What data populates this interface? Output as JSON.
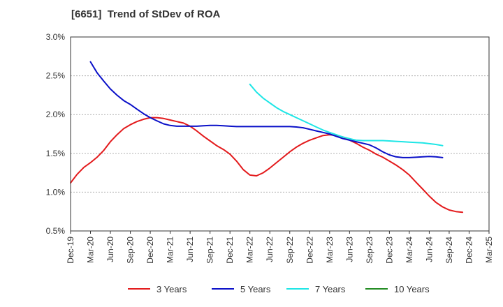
{
  "chart_data": {
    "type": "line",
    "title": "[6651]  Trend of StDev of ROA",
    "xlabel": "",
    "ylabel": "",
    "x_ticks": [
      "Dec-19",
      "Mar-20",
      "Jun-20",
      "Sep-20",
      "Dec-20",
      "Mar-21",
      "Jun-21",
      "Sep-21",
      "Dec-21",
      "Mar-22",
      "Jun-22",
      "Sep-22",
      "Dec-22",
      "Mar-23",
      "Jun-23",
      "Sep-23",
      "Dec-23",
      "Mar-24",
      "Jun-24",
      "Sep-24",
      "Dec-24",
      "Mar-25"
    ],
    "y_ticks": [
      "0.5%",
      "1.0%",
      "1.5%",
      "2.0%",
      "2.5%",
      "3.0%"
    ],
    "ylim": [
      0.5,
      3.0
    ],
    "y_unit": "%",
    "grid": "horizontal dashed",
    "legend_position": "bottom",
    "series": [
      {
        "name": "3 Years",
        "color": "#e31a1c",
        "points": [
          [
            0,
            1.12
          ],
          [
            0.33,
            1.23
          ],
          [
            0.67,
            1.32
          ],
          [
            1,
            1.38
          ],
          [
            1.33,
            1.45
          ],
          [
            1.67,
            1.54
          ],
          [
            2,
            1.65
          ],
          [
            2.33,
            1.74
          ],
          [
            2.67,
            1.82
          ],
          [
            3,
            1.87
          ],
          [
            3.33,
            1.91
          ],
          [
            3.67,
            1.94
          ],
          [
            4,
            1.96
          ],
          [
            4.33,
            1.96
          ],
          [
            4.67,
            1.95
          ],
          [
            5,
            1.93
          ],
          [
            5.33,
            1.91
          ],
          [
            5.67,
            1.89
          ],
          [
            6,
            1.85
          ],
          [
            6.33,
            1.79
          ],
          [
            6.67,
            1.72
          ],
          [
            7,
            1.66
          ],
          [
            7.33,
            1.6
          ],
          [
            7.67,
            1.55
          ],
          [
            8,
            1.49
          ],
          [
            8.33,
            1.4
          ],
          [
            8.67,
            1.29
          ],
          [
            9,
            1.22
          ],
          [
            9.33,
            1.21
          ],
          [
            9.67,
            1.25
          ],
          [
            10,
            1.31
          ],
          [
            10.33,
            1.38
          ],
          [
            10.67,
            1.45
          ],
          [
            11,
            1.52
          ],
          [
            11.33,
            1.58
          ],
          [
            11.67,
            1.63
          ],
          [
            12,
            1.67
          ],
          [
            12.33,
            1.7
          ],
          [
            12.67,
            1.73
          ],
          [
            13,
            1.74
          ],
          [
            13.33,
            1.73
          ],
          [
            13.67,
            1.71
          ],
          [
            14,
            1.67
          ],
          [
            14.33,
            1.63
          ],
          [
            14.67,
            1.58
          ],
          [
            15,
            1.54
          ],
          [
            15.33,
            1.49
          ],
          [
            15.67,
            1.45
          ],
          [
            16,
            1.4
          ],
          [
            16.33,
            1.35
          ],
          [
            16.67,
            1.29
          ],
          [
            17,
            1.22
          ],
          [
            17.33,
            1.13
          ],
          [
            17.67,
            1.04
          ],
          [
            18,
            0.95
          ],
          [
            18.33,
            0.87
          ],
          [
            18.67,
            0.81
          ],
          [
            19,
            0.77
          ],
          [
            19.33,
            0.75
          ],
          [
            19.67,
            0.74
          ]
        ]
      },
      {
        "name": "5 Years",
        "color": "#0a10c8",
        "points": [
          [
            1,
            2.68
          ],
          [
            1.33,
            2.54
          ],
          [
            1.67,
            2.43
          ],
          [
            2,
            2.33
          ],
          [
            2.33,
            2.25
          ],
          [
            2.67,
            2.18
          ],
          [
            3,
            2.13
          ],
          [
            3.33,
            2.07
          ],
          [
            3.67,
            2.01
          ],
          [
            4,
            1.96
          ],
          [
            4.33,
            1.92
          ],
          [
            4.67,
            1.88
          ],
          [
            5,
            1.86
          ],
          [
            5.33,
            1.85
          ],
          [
            5.67,
            1.85
          ],
          [
            6,
            1.85
          ],
          [
            6.33,
            1.85
          ],
          [
            6.67,
            1.855
          ],
          [
            7,
            1.86
          ],
          [
            7.33,
            1.86
          ],
          [
            7.67,
            1.855
          ],
          [
            8,
            1.85
          ],
          [
            8.33,
            1.845
          ],
          [
            8.67,
            1.845
          ],
          [
            9,
            1.845
          ],
          [
            9.33,
            1.845
          ],
          [
            9.67,
            1.845
          ],
          [
            10,
            1.845
          ],
          [
            10.33,
            1.845
          ],
          [
            10.67,
            1.845
          ],
          [
            11,
            1.845
          ],
          [
            11.33,
            1.84
          ],
          [
            11.67,
            1.83
          ],
          [
            12,
            1.81
          ],
          [
            12.33,
            1.79
          ],
          [
            12.67,
            1.77
          ],
          [
            13,
            1.75
          ],
          [
            13.33,
            1.72
          ],
          [
            13.67,
            1.69
          ],
          [
            14,
            1.67
          ],
          [
            14.33,
            1.65
          ],
          [
            14.67,
            1.63
          ],
          [
            15,
            1.61
          ],
          [
            15.33,
            1.57
          ],
          [
            15.67,
            1.52
          ],
          [
            16,
            1.48
          ],
          [
            16.33,
            1.455
          ],
          [
            16.67,
            1.445
          ],
          [
            17,
            1.445
          ],
          [
            17.33,
            1.45
          ],
          [
            17.67,
            1.455
          ],
          [
            18,
            1.46
          ],
          [
            18.33,
            1.455
          ],
          [
            18.67,
            1.445
          ]
        ]
      },
      {
        "name": "7 Years",
        "color": "#1ee6e6",
        "points": [
          [
            9,
            2.39
          ],
          [
            9.33,
            2.29
          ],
          [
            9.67,
            2.21
          ],
          [
            10,
            2.15
          ],
          [
            10.33,
            2.09
          ],
          [
            10.67,
            2.04
          ],
          [
            11,
            2.0
          ],
          [
            11.33,
            1.96
          ],
          [
            11.67,
            1.92
          ],
          [
            12,
            1.88
          ],
          [
            12.33,
            1.84
          ],
          [
            12.67,
            1.8
          ],
          [
            13,
            1.77
          ],
          [
            13.33,
            1.74
          ],
          [
            13.67,
            1.71
          ],
          [
            14,
            1.69
          ],
          [
            14.33,
            1.67
          ],
          [
            14.67,
            1.665
          ],
          [
            15,
            1.665
          ],
          [
            15.33,
            1.665
          ],
          [
            15.67,
            1.665
          ],
          [
            16,
            1.66
          ],
          [
            16.33,
            1.655
          ],
          [
            16.67,
            1.65
          ],
          [
            17,
            1.645
          ],
          [
            17.33,
            1.64
          ],
          [
            17.67,
            1.635
          ],
          [
            18,
            1.625
          ],
          [
            18.33,
            1.615
          ],
          [
            18.67,
            1.6
          ]
        ]
      },
      {
        "name": "10 Years",
        "color": "#228b22",
        "points": []
      }
    ]
  }
}
